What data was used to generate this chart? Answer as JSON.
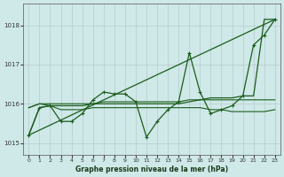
{
  "title": "Graphe pression niveau de la mer (hPa)",
  "background_color": "#cfe8e8",
  "grid_color": "#b8cccc",
  "line_color": "#1a5c1a",
  "marker_color": "#1a5c1a",
  "xlim": [
    -0.5,
    23.5
  ],
  "ylim": [
    1014.7,
    1018.55
  ],
  "yticks": [
    1015,
    1016,
    1017,
    1018
  ],
  "xticks": [
    0,
    1,
    2,
    3,
    4,
    5,
    6,
    7,
    8,
    9,
    10,
    11,
    12,
    13,
    14,
    15,
    16,
    17,
    18,
    19,
    20,
    21,
    22,
    23
  ],
  "series": [
    {
      "y": [
        1015.2,
        1015.9,
        1015.95,
        1015.55,
        1015.55,
        1015.75,
        1016.1,
        1016.3,
        1016.25,
        1016.25,
        1016.05,
        1015.15,
        1015.55,
        1015.85,
        1016.05,
        1017.3,
        1016.3,
        1015.75,
        1015.85,
        1015.95,
        1016.2,
        1017.5,
        1017.75,
        1018.15
      ],
      "lw": 0.9,
      "marker": true
    },
    {
      "y": [
        1015.2,
        1015.9,
        1015.95,
        1015.95,
        1015.95,
        1015.95,
        1016.0,
        1016.0,
        1016.0,
        1016.0,
        1016.0,
        1016.0,
        1016.0,
        1016.0,
        1016.0,
        1016.05,
        1016.1,
        1016.15,
        1016.15,
        1016.15,
        1016.2,
        1016.2,
        1018.15,
        1018.15
      ],
      "lw": 0.9,
      "marker": false
    },
    {
      "y": [
        1015.9,
        1016.0,
        1015.95,
        1015.85,
        1015.85,
        1015.85,
        1015.9,
        1015.9,
        1015.9,
        1015.9,
        1015.9,
        1015.9,
        1015.9,
        1015.9,
        1015.9,
        1015.9,
        1015.9,
        1015.85,
        1015.85,
        1015.8,
        1015.8,
        1015.8,
        1015.8,
        1015.85
      ],
      "lw": 0.8,
      "marker": false
    },
    {
      "y": [
        1015.9,
        1016.0,
        1016.0,
        1016.0,
        1016.0,
        1016.0,
        1016.0,
        1016.05,
        1016.05,
        1016.05,
        1016.05,
        1016.05,
        1016.05,
        1016.05,
        1016.05,
        1016.1,
        1016.1,
        1016.1,
        1016.1,
        1016.1,
        1016.1,
        1016.1,
        1016.1,
        1016.1
      ],
      "lw": 0.8,
      "marker": false
    }
  ],
  "straight_line": {
    "x": [
      0,
      23
    ],
    "y": [
      1015.2,
      1018.15
    ],
    "lw": 0.9
  }
}
